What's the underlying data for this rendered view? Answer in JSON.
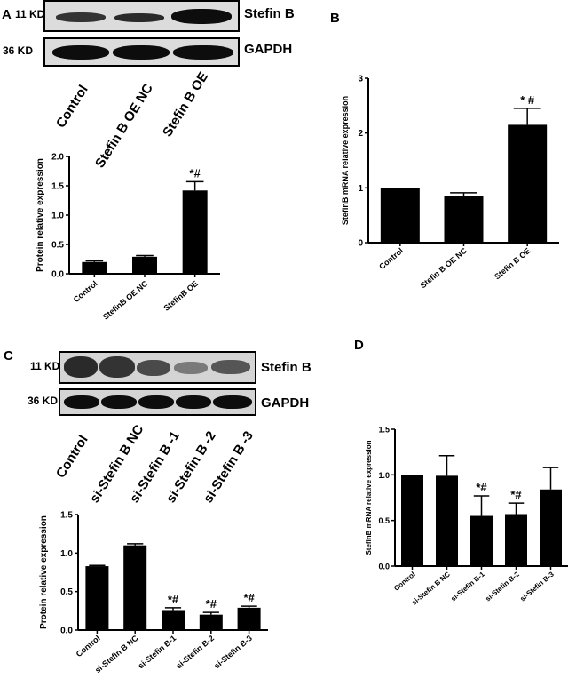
{
  "panels": {
    "a": "A",
    "b": "B",
    "c": "C",
    "d": "D"
  },
  "blot_a": {
    "kd_top": "11 KD",
    "kd_bottom": "36 KD",
    "protein_top": "Stefin B",
    "protein_bottom": "GAPDH",
    "lanes": [
      "Control",
      "Stefin B OE NC",
      "Stefin B OE"
    ]
  },
  "blot_c": {
    "kd_top": "11 KD",
    "kd_bottom": "36 KD",
    "protein_top": "Stefin B",
    "protein_bottom": "GAPDH",
    "lanes": [
      "Control",
      "si-Stefin B NC",
      "si-Stefin B -1",
      "si-Stefin B -2",
      "si-Stefin B -3"
    ]
  },
  "chart_data": [
    {
      "id": "chart-a",
      "type": "bar",
      "categories": [
        "Control",
        "StefinB OE NC",
        "StefinB OE"
      ],
      "values": [
        0.2,
        0.29,
        1.42
      ],
      "errors": [
        0.02,
        0.02,
        0.15
      ],
      "annotations": [
        "",
        "",
        "*#"
      ],
      "xlabel": "",
      "ylabel": "Protein relative expression",
      "ylim": [
        0,
        2.0
      ],
      "yticks": [
        "0.0",
        "0.5",
        "1.0",
        "1.5",
        "2.0"
      ],
      "grid": false
    },
    {
      "id": "chart-b",
      "type": "bar",
      "categories": [
        "Control",
        "Stefin B OE NC",
        "Stefin B OE"
      ],
      "values": [
        1.0,
        0.85,
        2.15
      ],
      "errors": [
        0.0,
        0.06,
        0.3
      ],
      "annotations": [
        "",
        "",
        "* #"
      ],
      "xlabel": "",
      "ylabel": "StefinB mRNA relative expression",
      "ylim": [
        0,
        3
      ],
      "yticks": [
        "0",
        "1",
        "2",
        "3"
      ],
      "grid": false
    },
    {
      "id": "chart-c",
      "type": "bar",
      "categories": [
        "Control",
        "si-Stefin B NC",
        "si-Stefin B-1",
        "si-Stefin B-2",
        "si-Stefin B-3"
      ],
      "values": [
        0.83,
        1.1,
        0.26,
        0.2,
        0.29
      ],
      "errors": [
        0.01,
        0.02,
        0.03,
        0.03,
        0.02
      ],
      "annotations": [
        "",
        "",
        "*#",
        "*#",
        "*#"
      ],
      "xlabel": "",
      "ylabel": "Protein relative expression",
      "ylim": [
        0,
        1.5
      ],
      "yticks": [
        "0.0",
        "0.5",
        "1.0",
        "1.5"
      ],
      "grid": false
    },
    {
      "id": "chart-d",
      "type": "bar",
      "categories": [
        "Control",
        "si-Stefin B NC",
        "si-Stefin B-1",
        "si-Stefin B-2",
        "si-Stefin B-3"
      ],
      "values": [
        1.0,
        0.99,
        0.55,
        0.57,
        0.84
      ],
      "errors": [
        0.0,
        0.22,
        0.22,
        0.12,
        0.24
      ],
      "annotations": [
        "",
        "",
        "*#",
        "*#",
        ""
      ],
      "xlabel": "",
      "ylabel": "StefinB mRNA relative expression",
      "ylim": [
        0,
        1.5
      ],
      "yticks": [
        "0.0",
        "0.5",
        "1.0",
        "1.5"
      ],
      "grid": false
    }
  ]
}
